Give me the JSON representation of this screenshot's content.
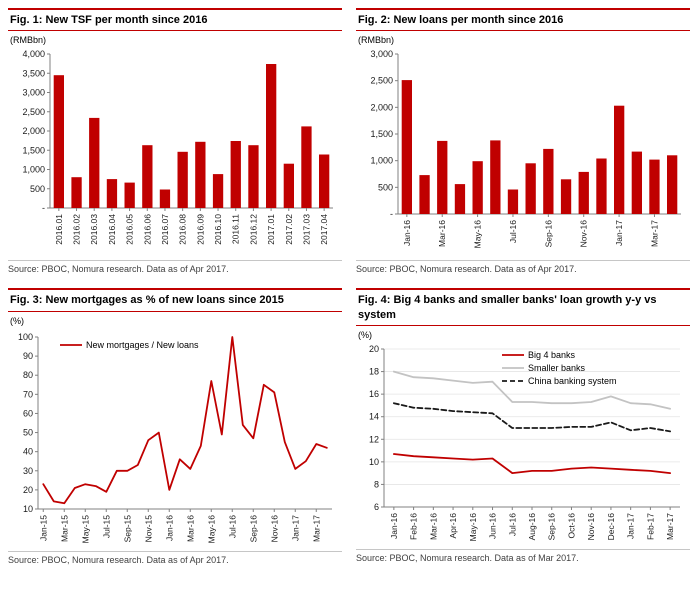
{
  "page": {
    "background": "#ffffff",
    "accent_red": "#c00000"
  },
  "figures": [
    {
      "title": "Fig. 1: New TSF per month since 2016",
      "unit": "(RMBbn)",
      "source": "Source: PBOC, Nomura research. Data as of Apr 2017."
    },
    {
      "title": "Fig. 2: New loans per month since 2016",
      "unit": "(RMBbn)",
      "source": "Source: PBOC, Nomura research. Data as of Apr 2017."
    },
    {
      "title": "Fig. 3: New mortgages as % of new loans since 2015",
      "unit": "(%)",
      "source": "Source: PBOC, Nomura research. Data as of Apr 2017."
    },
    {
      "title": "Fig. 4: Big 4 banks and smaller banks' loan growth y-y vs system",
      "unit": "(%)",
      "source": "Source: PBOC, Nomura research. Data as of Mar 2017."
    }
  ],
  "chart_data": [
    {
      "type": "bar",
      "title": "Fig. 1: New TSF per month since 2016",
      "xlabel": "",
      "ylabel": "(RMBbn)",
      "categories": [
        "2016.01",
        "2016.02",
        "2016.03",
        "2016.04",
        "2016.05",
        "2016.06",
        "2016.07",
        "2016.08",
        "2016.09",
        "2016.10",
        "2016.11",
        "2016.12",
        "2017.01",
        "2017.02",
        "2017.03",
        "2017.04"
      ],
      "values": [
        3450,
        800,
        2340,
        750,
        660,
        1630,
        480,
        1460,
        1720,
        880,
        1740,
        1630,
        3740,
        1150,
        2120,
        1390
      ],
      "ylim": [
        0,
        4000
      ],
      "yticks": [
        0,
        500,
        1000,
        1500,
        2000,
        2500,
        3000,
        3500,
        4000
      ],
      "ytick_labels": [
        "-",
        "500",
        "1,000",
        "1,500",
        "2,000",
        "2,500",
        "3,000",
        "3,500",
        "4,000"
      ],
      "xtick_every": 1,
      "bar_color": "#c00000",
      "grid": false,
      "legend_position": "none"
    },
    {
      "type": "bar",
      "title": "Fig. 2: New loans per month since 2016",
      "xlabel": "",
      "ylabel": "(RMBbn)",
      "categories": [
        "Jan-16",
        "Feb-16",
        "Mar-16",
        "Apr-16",
        "May-16",
        "Jun-16",
        "Jul-16",
        "Aug-16",
        "Sep-16",
        "Oct-16",
        "Nov-16",
        "Dec-16",
        "Jan-17",
        "Feb-17",
        "Mar-17",
        "Apr-17"
      ],
      "values": [
        2510,
        730,
        1370,
        560,
        990,
        1380,
        460,
        950,
        1220,
        650,
        790,
        1040,
        2030,
        1170,
        1020,
        1100
      ],
      "ylim": [
        0,
        3000
      ],
      "yticks": [
        0,
        500,
        1000,
        1500,
        2000,
        2500,
        3000
      ],
      "ytick_labels": [
        "-",
        "500",
        "1,000",
        "1,500",
        "2,000",
        "2,500",
        "3,000"
      ],
      "xtick_every": 2,
      "bar_color": "#c00000",
      "grid": false,
      "legend_position": "none"
    },
    {
      "type": "line",
      "title": "Fig. 3: New mortgages as % of new loans since 2015",
      "xlabel": "",
      "ylabel": "(%)",
      "categories": [
        "Jan-15",
        "Feb-15",
        "Mar-15",
        "Apr-15",
        "May-15",
        "Jun-15",
        "Jul-15",
        "Aug-15",
        "Sep-15",
        "Oct-15",
        "Nov-15",
        "Dec-15",
        "Jan-16",
        "Feb-16",
        "Mar-16",
        "Apr-16",
        "May-16",
        "Jun-16",
        "Jul-16",
        "Aug-16",
        "Sep-16",
        "Oct-16",
        "Nov-16",
        "Dec-16",
        "Jan-17",
        "Feb-17",
        "Mar-17",
        "Apr-17"
      ],
      "series": [
        {
          "name": "New mortgages / New loans",
          "color": "#c00000",
          "dashed": false,
          "values": [
            23,
            14,
            13,
            21,
            23,
            22,
            19,
            30,
            30,
            33,
            46,
            50,
            20,
            36,
            31,
            43,
            77,
            49,
            100,
            54,
            47,
            75,
            71,
            45,
            31,
            35,
            44,
            42
          ]
        }
      ],
      "ylim": [
        10,
        100
      ],
      "yticks": [
        10,
        20,
        30,
        40,
        50,
        60,
        70,
        80,
        90,
        100
      ],
      "ytick_labels": [
        "10",
        "20",
        "30",
        "40",
        "50",
        "60",
        "70",
        "80",
        "90",
        "100"
      ],
      "xtick_every": 2,
      "grid": false,
      "legend_position": "top-left-inset"
    },
    {
      "type": "line",
      "title": "Fig. 4: Big 4 banks and smaller banks' loan growth y-y vs system",
      "xlabel": "",
      "ylabel": "(%)",
      "categories": [
        "Jan-16",
        "Feb-16",
        "Mar-16",
        "Apr-16",
        "May-16",
        "Jun-16",
        "Jul-16",
        "Aug-16",
        "Sep-16",
        "Oct-16",
        "Nov-16",
        "Dec-16",
        "Jan-17",
        "Feb-17",
        "Mar-17"
      ],
      "series": [
        {
          "name": "Big 4 banks",
          "color": "#c00000",
          "dashed": false,
          "values": [
            10.7,
            10.5,
            10.4,
            10.3,
            10.2,
            10.3,
            9.0,
            9.2,
            9.2,
            9.4,
            9.5,
            9.4,
            9.3,
            9.2,
            9.0
          ]
        },
        {
          "name": "Smaller banks",
          "color": "#c3c3c3",
          "dashed": false,
          "values": [
            18.0,
            17.5,
            17.4,
            17.2,
            17.0,
            17.1,
            15.3,
            15.3,
            15.2,
            15.2,
            15.3,
            15.8,
            15.2,
            15.1,
            14.7
          ]
        },
        {
          "name": "China banking system",
          "color": "#1a1a1a",
          "dashed": true,
          "values": [
            15.2,
            14.8,
            14.7,
            14.5,
            14.4,
            14.3,
            13.0,
            13.0,
            13.0,
            13.1,
            13.1,
            13.5,
            12.8,
            13.0,
            12.7
          ]
        }
      ],
      "ylim": [
        6,
        20
      ],
      "yticks": [
        6,
        8,
        10,
        12,
        14,
        16,
        18,
        20
      ],
      "ytick_labels": [
        "6",
        "8",
        "10",
        "12",
        "14",
        "16",
        "18",
        "20"
      ],
      "xtick_every": 1,
      "grid": true,
      "legend_position": "top-inset"
    }
  ]
}
